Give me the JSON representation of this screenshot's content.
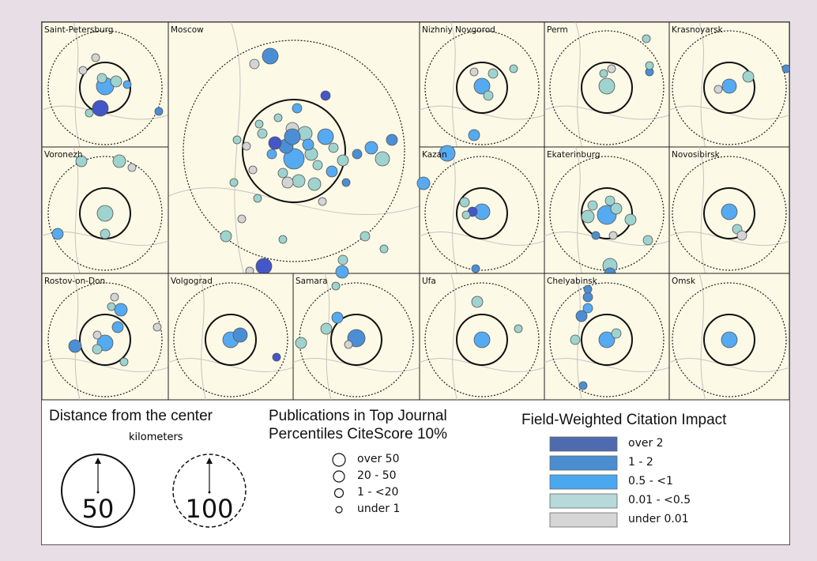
{
  "colors": {
    "over_2": "#4357c8",
    "1_2": "#4a8fd6",
    "0_5_1": "#55aaf2",
    "0_01_0_5": "#9ed3cf",
    "under_0_01": "#d4d4d4",
    "map_bg": "#fcf9e6",
    "border": "#333333",
    "legend_over_2": "#4f6bb0",
    "legend_1_2": "#4a8ed0",
    "legend_0_5_1": "#4aa8ef",
    "legend_0_01_0_5": "#b6d9da",
    "legend_under_0_01": "#d6d6d6"
  },
  "cities": [
    {
      "name": "Saint-Petersburg"
    },
    {
      "name": "Moscow"
    },
    {
      "name": "Nizhniy Novgorod"
    },
    {
      "name": "Perm"
    },
    {
      "name": "Krasnoyarsk"
    },
    {
      "name": "Voronezh"
    },
    {
      "name": "Kazan"
    },
    {
      "name": "Ekaterinburg"
    },
    {
      "name": "Novosibirsk"
    },
    {
      "name": "Rostov-on-Don"
    },
    {
      "name": "Volgograd"
    },
    {
      "name": "Samara"
    },
    {
      "name": "Ufa"
    },
    {
      "name": "Chelyabinsk"
    },
    {
      "name": "Omsk"
    }
  ],
  "legend": {
    "distance": {
      "title": "Distance from the center",
      "unit": "kilometers",
      "values": [
        "50",
        "100"
      ]
    },
    "publications": {
      "title_line1": "Publications in Top Journal",
      "title_line2": "Percentiles CiteScore 10%",
      "items": [
        "over 50",
        "20 - 50",
        "1 - <20",
        "under 1"
      ]
    },
    "fwci": {
      "title": "Field-Weighted Citation Impact",
      "items": [
        "over 2",
        "1 - 2",
        "0.5 - <1",
        "0.01 - <0.5",
        "under 0.01"
      ]
    }
  }
}
